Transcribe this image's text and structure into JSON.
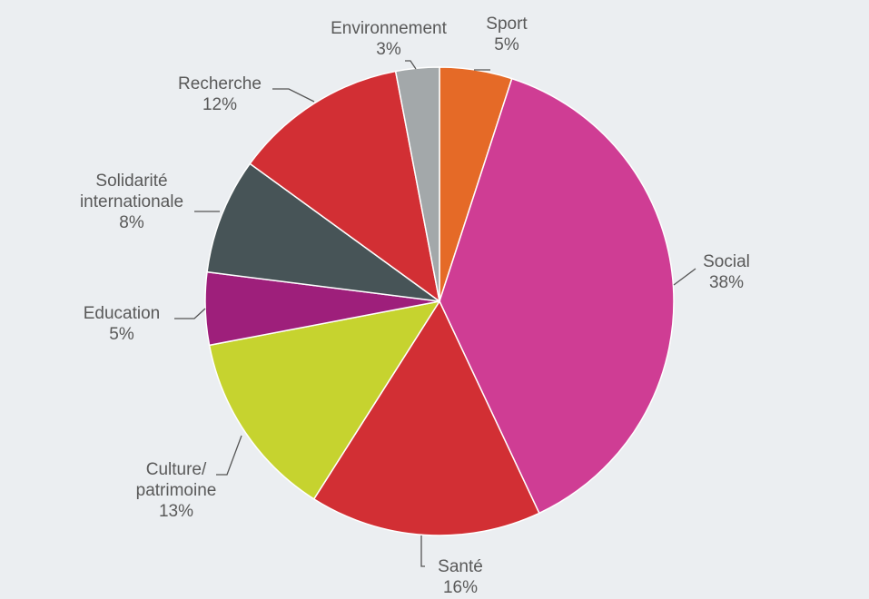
{
  "chart_data": {
    "type": "pie",
    "title": "",
    "start_angle_deg": 0,
    "direction": "clockwise",
    "slices": [
      {
        "label": [
          "Sport"
        ],
        "value": 5,
        "pct": "5%",
        "color": "#e56a27"
      },
      {
        "label": [
          "Social"
        ],
        "value": 38,
        "pct": "38%",
        "color": "#cf3d94"
      },
      {
        "label": [
          "Santé"
        ],
        "value": 16,
        "pct": "16%",
        "color": "#d22f34"
      },
      {
        "label": [
          "Culture/",
          "patrimoine"
        ],
        "value": 13,
        "pct": "13%",
        "color": "#c6d32f"
      },
      {
        "label": [
          "Education"
        ],
        "value": 5,
        "pct": "5%",
        "color": "#9e1f7b"
      },
      {
        "label": [
          "Solidarité",
          "internationale"
        ],
        "value": 8,
        "pct": "8%",
        "color": "#475457"
      },
      {
        "label": [
          "Recherche"
        ],
        "value": 12,
        "pct": "12%",
        "color": "#d22f34"
      },
      {
        "label": [
          "Environnement"
        ],
        "value": 3,
        "pct": "3%",
        "color": "#a3a8aa"
      }
    ]
  }
}
